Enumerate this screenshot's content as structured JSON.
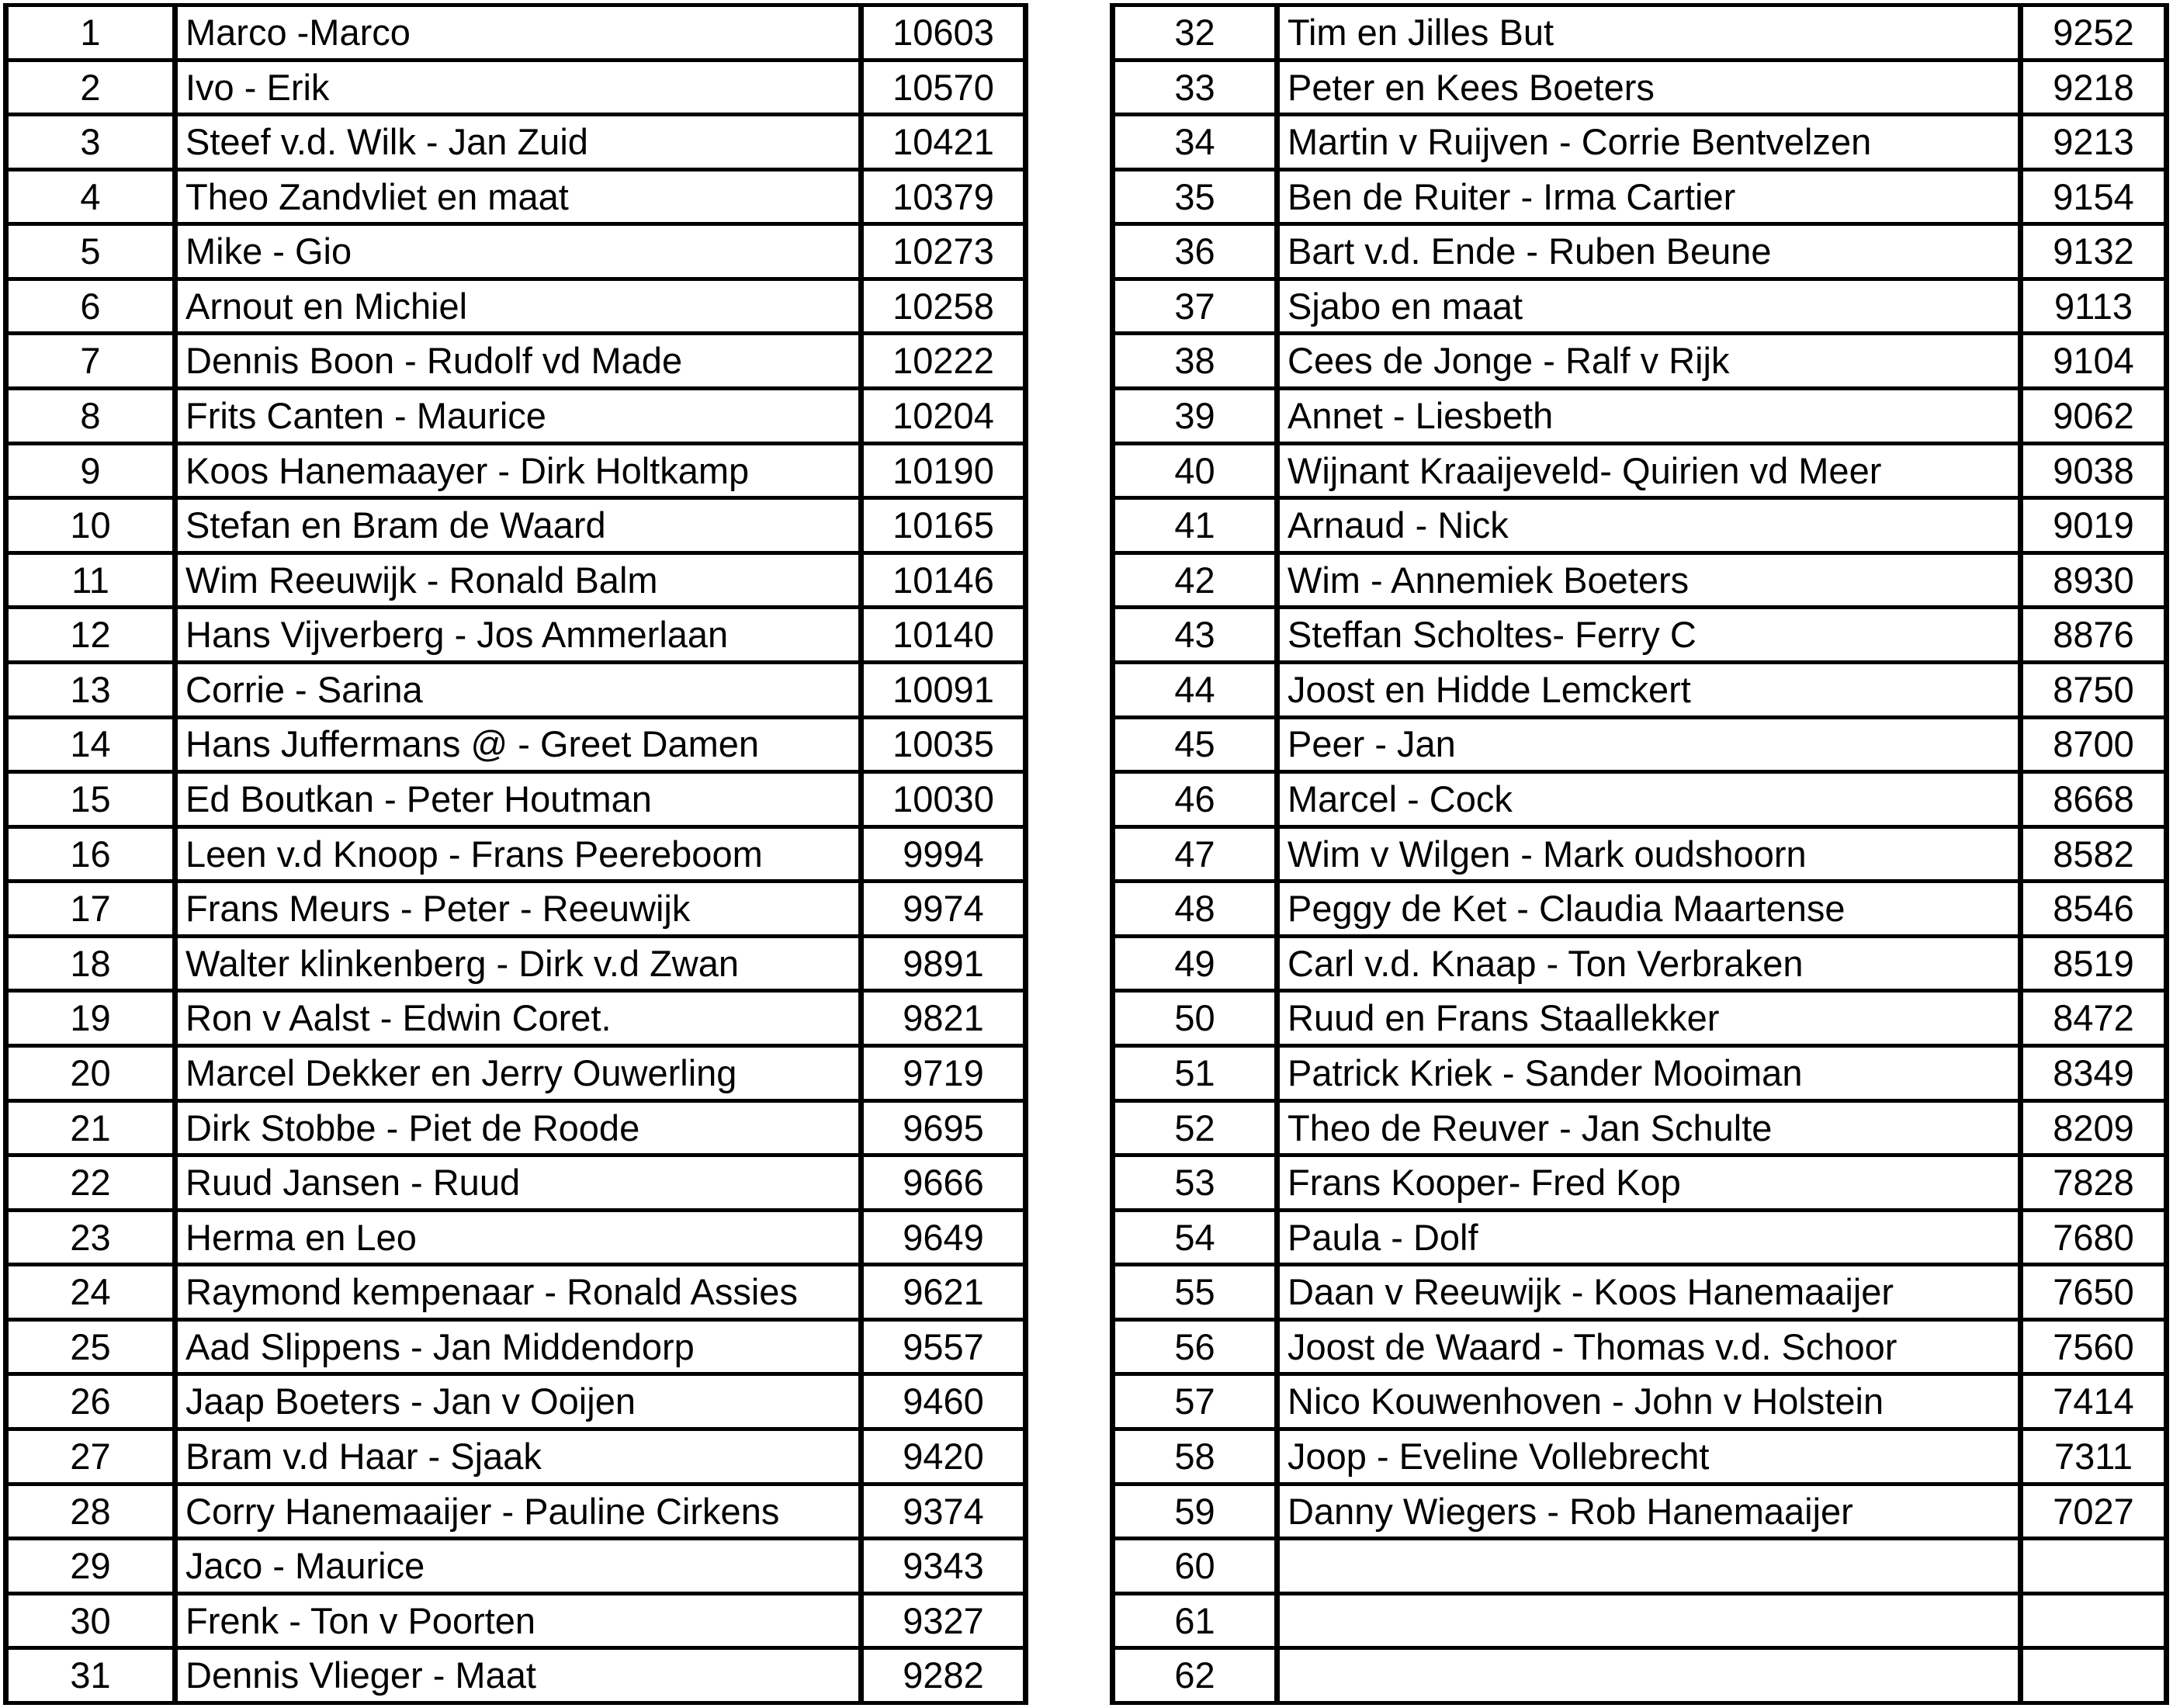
{
  "page": {
    "kind": "score-ranking-sheet",
    "background_color": "#ffffff",
    "border_color": "#000000",
    "text_color": "#000000"
  },
  "tables": {
    "left": {
      "rows": [
        {
          "rank": "1",
          "name": "Marco -Marco",
          "score": "10603"
        },
        {
          "rank": "2",
          "name": "Ivo - Erik",
          "score": "10570"
        },
        {
          "rank": "3",
          "name": "Steef v.d. Wilk - Jan Zuid",
          "score": "10421"
        },
        {
          "rank": "4",
          "name": "Theo Zandvliet en maat",
          "score": "10379"
        },
        {
          "rank": "5",
          "name": "Mike - Gio",
          "score": "10273"
        },
        {
          "rank": "6",
          "name": "Arnout en Michiel",
          "score": "10258"
        },
        {
          "rank": "7",
          "name": "Dennis Boon - Rudolf vd Made",
          "score": "10222"
        },
        {
          "rank": "8",
          "name": "Frits Canten - Maurice",
          "score": "10204"
        },
        {
          "rank": "9",
          "name": "Koos Hanemaayer - Dirk Holtkamp",
          "score": "10190"
        },
        {
          "rank": "10",
          "name": "Stefan en Bram de Waard",
          "score": "10165"
        },
        {
          "rank": "11",
          "name": "Wim Reeuwijk - Ronald Balm",
          "score": "10146"
        },
        {
          "rank": "12",
          "name": "Hans Vijverberg - Jos Ammerlaan",
          "score": "10140"
        },
        {
          "rank": "13",
          "name": "Corrie - Sarina",
          "score": "10091"
        },
        {
          "rank": "14",
          "name": "Hans Juffermans @ - Greet Damen",
          "score": "10035"
        },
        {
          "rank": "15",
          "name": "Ed Boutkan - Peter Houtman",
          "score": "10030"
        },
        {
          "rank": "16",
          "name": "Leen v.d Knoop - Frans Peereboom",
          "score": "9994"
        },
        {
          "rank": "17",
          "name": "Frans Meurs - Peter - Reeuwijk",
          "score": "9974"
        },
        {
          "rank": "18",
          "name": "Walter klinkenberg - Dirk v.d Zwan",
          "score": "9891"
        },
        {
          "rank": "19",
          "name": "Ron v Aalst - Edwin Coret.",
          "score": "9821"
        },
        {
          "rank": "20",
          "name": "Marcel Dekker en Jerry Ouwerling",
          "score": "9719"
        },
        {
          "rank": "21",
          "name": "Dirk Stobbe - Piet de Roode",
          "score": "9695"
        },
        {
          "rank": "22",
          "name": "Ruud Jansen - Ruud",
          "score": "9666"
        },
        {
          "rank": "23",
          "name": "Herma en Leo",
          "score": "9649"
        },
        {
          "rank": "24",
          "name": "Raymond kempenaar - Ronald Assies",
          "score": "9621"
        },
        {
          "rank": "25",
          "name": "Aad Slippens - Jan Middendorp",
          "score": "9557"
        },
        {
          "rank": "26",
          "name": "Jaap Boeters - Jan v Ooijen",
          "score": "9460"
        },
        {
          "rank": "27",
          "name": "Bram v.d Haar - Sjaak",
          "score": "9420"
        },
        {
          "rank": "28",
          "name": "Corry Hanemaaijer - Pauline Cirkens",
          "score": "9374"
        },
        {
          "rank": "29",
          "name": "Jaco - Maurice",
          "score": "9343"
        },
        {
          "rank": "30",
          "name": "Frenk - Ton v Poorten",
          "score": "9327"
        },
        {
          "rank": "31",
          "name": "Dennis Vlieger - Maat",
          "score": "9282"
        }
      ]
    },
    "right": {
      "rows": [
        {
          "rank": "32",
          "name": "Tim en Jilles But",
          "score": "9252"
        },
        {
          "rank": "33",
          "name": "Peter en Kees Boeters",
          "score": "9218"
        },
        {
          "rank": "34",
          "name": "Martin v Ruijven - Corrie Bentvelzen",
          "score": "9213"
        },
        {
          "rank": "35",
          "name": "Ben de Ruiter - Irma Cartier",
          "score": "9154"
        },
        {
          "rank": "36",
          "name": "Bart v.d. Ende - Ruben Beune",
          "score": "9132"
        },
        {
          "rank": "37",
          "name": "Sjabo en maat",
          "score": "9113"
        },
        {
          "rank": "38",
          "name": "Cees de Jonge - Ralf v Rijk",
          "score": "9104"
        },
        {
          "rank": "39",
          "name": "Annet - Liesbeth",
          "score": "9062"
        },
        {
          "rank": "40",
          "name": "Wijnant Kraaijeveld- Quirien vd Meer",
          "score": "9038"
        },
        {
          "rank": "41",
          "name": "Arnaud - Nick",
          "score": "9019"
        },
        {
          "rank": "42",
          "name": "Wim - Annemiek Boeters",
          "score": "8930"
        },
        {
          "rank": "43",
          "name": "Steffan Scholtes- Ferry C",
          "score": "8876"
        },
        {
          "rank": "44",
          "name": "Joost en Hidde Lemckert",
          "score": "8750"
        },
        {
          "rank": "45",
          "name": "Peer - Jan",
          "score": "8700"
        },
        {
          "rank": "46",
          "name": "Marcel - Cock",
          "score": "8668"
        },
        {
          "rank": "47",
          "name": "Wim v Wilgen - Mark oudshoorn",
          "score": "8582"
        },
        {
          "rank": "48",
          "name": "Peggy de Ket - Claudia Maartense",
          "score": "8546"
        },
        {
          "rank": "49",
          "name": "Carl v.d. Knaap - Ton Verbraken",
          "score": "8519"
        },
        {
          "rank": "50",
          "name": "Ruud en Frans Staallekker",
          "score": "8472"
        },
        {
          "rank": "51",
          "name": "Patrick Kriek - Sander Mooiman",
          "score": "8349"
        },
        {
          "rank": "52",
          "name": "Theo de Reuver - Jan Schulte",
          "score": "8209"
        },
        {
          "rank": "53",
          "name": "Frans Kooper- Fred Kop",
          "score": "7828"
        },
        {
          "rank": "54",
          "name": "Paula - Dolf",
          "score": "7680"
        },
        {
          "rank": "55",
          "name": "Daan v Reeuwijk - Koos Hanemaaijer",
          "score": "7650"
        },
        {
          "rank": "56",
          "name": "Joost de Waard - Thomas v.d. Schoor",
          "score": "7560"
        },
        {
          "rank": "57",
          "name": "Nico Kouwenhoven - John v Holstein",
          "score": "7414"
        },
        {
          "rank": "58",
          "name": "Joop - Eveline Vollebrecht",
          "score": "7311"
        },
        {
          "rank": "59",
          "name": "Danny Wiegers - Rob Hanemaaijer",
          "score": "7027"
        },
        {
          "rank": "60",
          "name": "",
          "score": ""
        },
        {
          "rank": "61",
          "name": "",
          "score": ""
        },
        {
          "rank": "62",
          "name": "",
          "score": ""
        }
      ]
    }
  }
}
